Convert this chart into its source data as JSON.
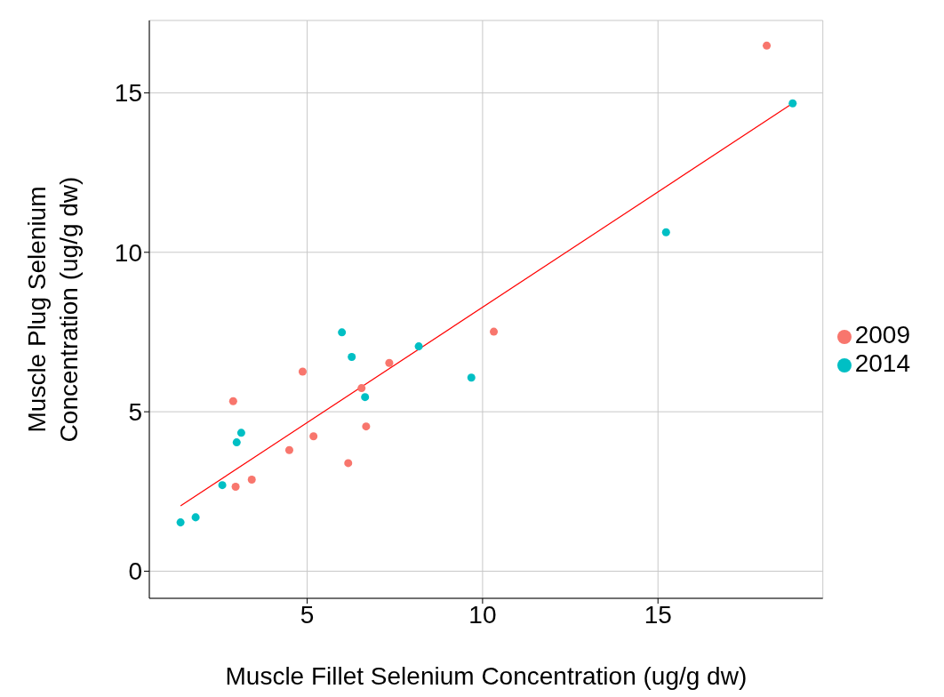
{
  "chart_data": {
    "type": "scatter",
    "xlabel": "Muscle Fillet Selenium Concentration (ug/g dw)",
    "ylabel": "Muscle Plug Selenium\nConcentration (ug/g dw)",
    "xlim": [
      0.5,
      19.7
    ],
    "ylim": [
      -0.85,
      17.27
    ],
    "xticks": [
      5,
      10,
      15
    ],
    "yticks": [
      0,
      5,
      10,
      15
    ],
    "grid": true,
    "legend": "right",
    "series": [
      {
        "name": "2009",
        "color": "#f8766d",
        "marker": "circle",
        "x": [
          18.1,
          10.32,
          7.34,
          6.55,
          6.68,
          4.87,
          2.89,
          5.18,
          4.49,
          6.17,
          3.42,
          2.96
        ],
        "values": [
          16.48,
          7.51,
          6.53,
          5.74,
          4.54,
          6.26,
          5.33,
          4.23,
          3.8,
          3.39,
          2.87,
          2.65
        ]
      },
      {
        "name": "2014",
        "color": "#00bfc4",
        "marker": "circle",
        "x": [
          18.84,
          15.23,
          5.99,
          6.27,
          8.18,
          9.68,
          6.65,
          3.12,
          2.99,
          2.58,
          1.82,
          1.39
        ],
        "values": [
          14.67,
          10.63,
          7.49,
          6.72,
          7.05,
          6.07,
          5.46,
          4.34,
          4.04,
          2.7,
          1.69,
          1.53
        ]
      },
      {
        "type": "line",
        "color": "#ff0000",
        "x": [
          1.39,
          18.77
        ],
        "values": [
          2.05,
          14.62
        ]
      }
    ]
  }
}
